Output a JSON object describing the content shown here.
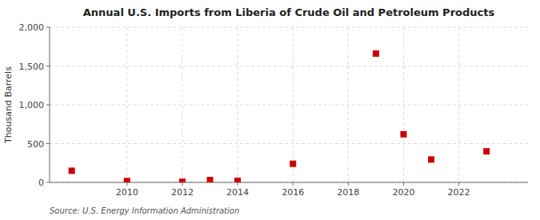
{
  "chart_data": {
    "type": "scatter",
    "title": "Annual U.S. Imports from Liberia of Crude Oil and Petroleum Products",
    "ylabel": "Thousand Barrels",
    "annotations": [
      "Source: U.S. Energy Information Administration"
    ],
    "x": [
      2008,
      2010,
      2012,
      2013,
      2014,
      2016,
      2019,
      2020,
      2021,
      2023
    ],
    "values": [
      150,
      18,
      8,
      30,
      20,
      240,
      1660,
      620,
      295,
      400
    ],
    "color": "#cc0000",
    "marker": "square",
    "xlim": [
      2007.2,
      2024.5
    ],
    "ylim": [
      0,
      2000
    ],
    "xticks": [
      2010,
      2012,
      2014,
      2016,
      2018,
      2020,
      2022
    ],
    "yticks": [
      0,
      500,
      {
        "value": 1000,
        "label": "1,000"
      },
      {
        "value": 1500,
        "label": "1,500"
      },
      {
        "value": 2000,
        "label": "2,000"
      }
    ],
    "grid": true
  }
}
